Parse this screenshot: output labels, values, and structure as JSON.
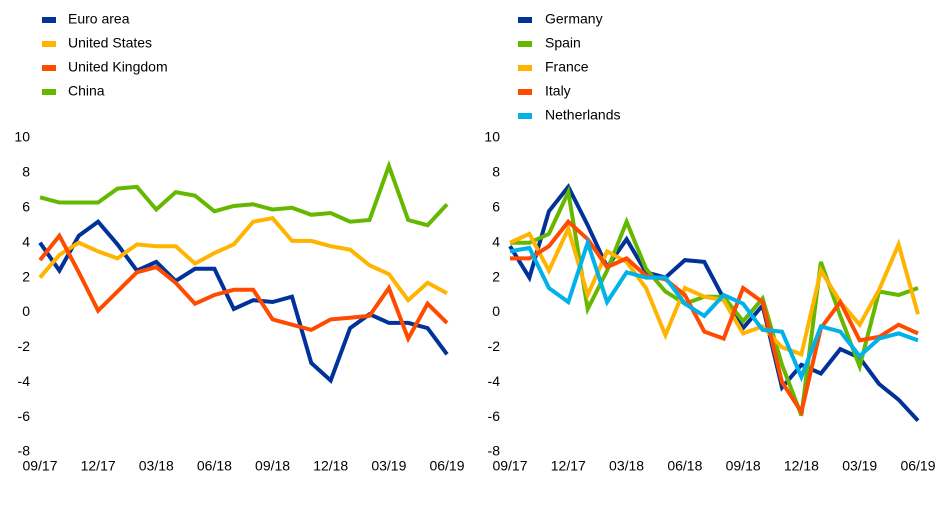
{
  "chart_data": [
    {
      "type": "line",
      "categories": [
        "09/17",
        null,
        null,
        "12/17",
        null,
        null,
        "03/18",
        null,
        null,
        "06/18",
        null,
        null,
        "09/18",
        null,
        null,
        "12/18",
        null,
        null,
        "03/19",
        null,
        null,
        "06/19"
      ],
      "series": [
        {
          "name": "Euro area",
          "color": "#003299",
          "values": [
            4.0,
            2.4,
            4.4,
            5.2,
            3.9,
            2.4,
            2.9,
            1.8,
            2.5,
            2.5,
            0.2,
            0.7,
            0.6,
            0.9,
            -2.9,
            -3.9,
            -0.9,
            -0.1,
            -0.6,
            -0.6,
            -0.9,
            -2.4
          ]
        },
        {
          "name": "United States",
          "color": "#ffb400",
          "values": [
            2.0,
            3.3,
            4.0,
            3.5,
            3.1,
            3.9,
            3.8,
            3.8,
            2.8,
            3.4,
            3.9,
            5.2,
            5.4,
            4.1,
            4.1,
            3.8,
            3.6,
            2.7,
            2.2,
            0.7,
            1.7,
            1.1
          ]
        },
        {
          "name": "United Kingdom",
          "color": "#ff4b00",
          "values": [
            3.0,
            4.4,
            2.3,
            0.1,
            1.2,
            2.3,
            2.6,
            1.7,
            0.5,
            1.0,
            1.3,
            1.3,
            -0.4,
            -0.7,
            -1.0,
            -0.4,
            -0.3,
            -0.2,
            1.4,
            -1.5,
            0.5,
            -0.6
          ]
        },
        {
          "name": "China",
          "color": "#65b800",
          "values": [
            6.6,
            6.3,
            6.3,
            6.3,
            7.1,
            7.2,
            5.9,
            6.9,
            6.7,
            5.8,
            6.1,
            6.2,
            5.9,
            6.0,
            5.6,
            5.7,
            5.2,
            5.3,
            8.4,
            5.3,
            5.0,
            6.2
          ]
        }
      ],
      "ylim": [
        -8,
        10
      ],
      "yticks": [
        -8,
        -6,
        -4,
        -2,
        0,
        2,
        4,
        6,
        8,
        10
      ],
      "grid": false,
      "legend": "top-left"
    },
    {
      "type": "line",
      "categories": [
        "09/17",
        null,
        null,
        "12/17",
        null,
        null,
        "03/18",
        null,
        null,
        "06/18",
        null,
        null,
        "09/18",
        null,
        null,
        "12/18",
        null,
        null,
        "03/19",
        null,
        null,
        "06/19"
      ],
      "series": [
        {
          "name": "Germany",
          "color": "#003299",
          "values": [
            3.8,
            2.0,
            5.8,
            7.2,
            5.0,
            2.6,
            4.2,
            2.3,
            2.0,
            3.0,
            2.9,
            0.8,
            -0.9,
            0.4,
            -4.3,
            -3.0,
            -3.5,
            -2.1,
            -2.6,
            -4.1,
            -5.0,
            -6.2
          ]
        },
        {
          "name": "Spain",
          "color": "#65b800",
          "values": [
            4.0,
            4.0,
            4.5,
            6.9,
            0.2,
            2.4,
            5.2,
            2.5,
            1.2,
            0.5,
            0.9,
            0.9,
            -0.5,
            0.8,
            -3.0,
            -5.9,
            2.9,
            -0.2,
            -3.1,
            1.2,
            1.0,
            1.4
          ]
        },
        {
          "name": "France",
          "color": "#ffb400",
          "values": [
            4.0,
            4.5,
            2.4,
            4.8,
            1.0,
            3.5,
            2.9,
            1.4,
            -1.3,
            1.4,
            0.9,
            0.7,
            -1.2,
            -0.8,
            -2.0,
            -2.4,
            2.4,
            0.6,
            -0.7,
            1.3,
            3.9,
            -0.1
          ]
        },
        {
          "name": "Italy",
          "color": "#ff4b00",
          "values": [
            3.1,
            3.1,
            3.8,
            5.2,
            4.2,
            2.6,
            3.1,
            2.1,
            1.9,
            1.0,
            -1.1,
            -1.5,
            1.4,
            0.6,
            -4.0,
            -5.7,
            -0.9,
            0.6,
            -1.6,
            -1.4,
            -0.7,
            -1.2
          ]
        },
        {
          "name": "Netherlands",
          "color": "#00b1ea",
          "values": [
            3.5,
            3.7,
            1.4,
            0.6,
            4.0,
            0.6,
            2.3,
            2.0,
            2.0,
            0.5,
            -0.2,
            1.0,
            0.5,
            -1.0,
            -1.1,
            -3.7,
            -0.8,
            -1.1,
            -2.5,
            -1.5,
            -1.2,
            -1.6
          ]
        }
      ],
      "ylim": [
        -8,
        10
      ],
      "yticks": [
        -8,
        -6,
        -4,
        -2,
        0,
        2,
        4,
        6,
        8,
        10
      ],
      "grid": false,
      "legend": "top-left"
    }
  ]
}
